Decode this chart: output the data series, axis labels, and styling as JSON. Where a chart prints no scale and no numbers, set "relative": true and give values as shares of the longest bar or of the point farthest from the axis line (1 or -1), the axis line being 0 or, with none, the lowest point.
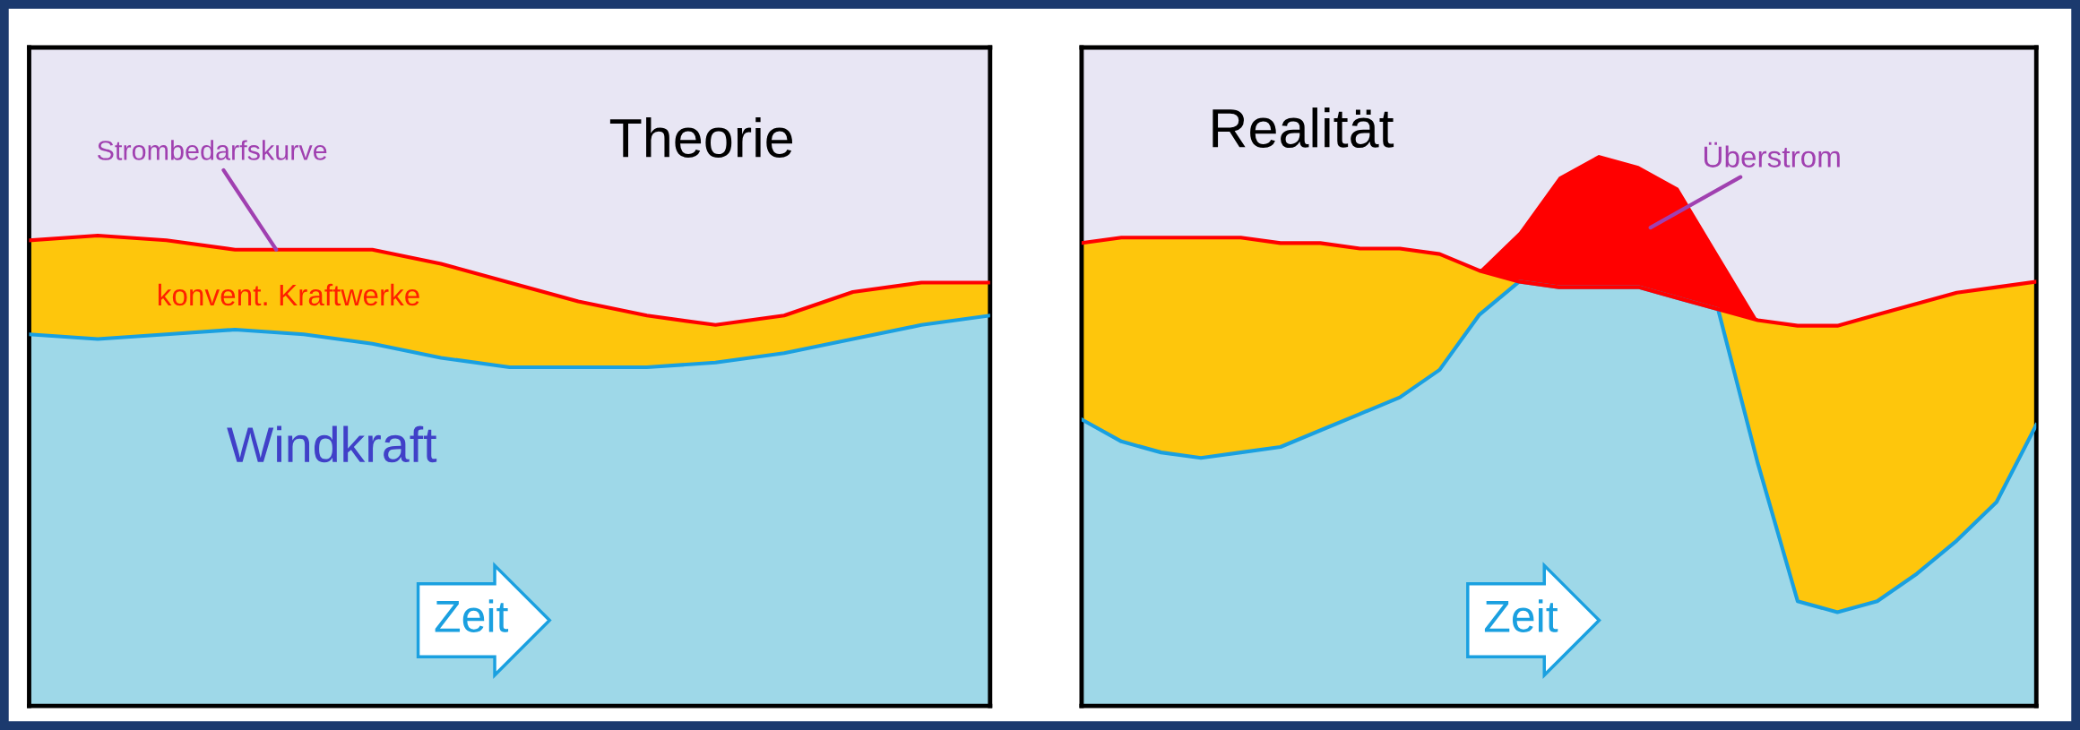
{
  "chart_data": [
    {
      "type": "area",
      "title": "Theorie",
      "xlabel": "Zeit",
      "annotations": [
        "Strombedarfskurve"
      ],
      "relative": true,
      "stacked": true,
      "legend": false,
      "grid": false,
      "categories": [
        null,
        null,
        null,
        null,
        null,
        null,
        null,
        null,
        null,
        null,
        null,
        null,
        null,
        null,
        null
      ],
      "series": [
        {
          "name": "Windkraft",
          "color": "#9ed8e8",
          "values": [
            0.79,
            0.78,
            0.79,
            0.8,
            0.79,
            0.77,
            0.74,
            0.72,
            0.72,
            0.72,
            0.73,
            0.75,
            0.78,
            0.81,
            0.83
          ]
        },
        {
          "name": "konvent. Kraftwerke",
          "color": "#fec60c",
          "values": [
            0.2,
            0.22,
            0.2,
            0.17,
            0.18,
            0.2,
            0.2,
            0.18,
            0.14,
            0.11,
            0.08,
            0.08,
            0.1,
            0.09,
            0.07
          ]
        }
      ]
    },
    {
      "type": "area",
      "title": "Realität",
      "xlabel": "Zeit",
      "relative": true,
      "stacked": true,
      "legend": false,
      "grid": false,
      "categories": [
        null,
        null,
        null,
        null,
        null,
        null,
        null,
        null,
        null,
        null,
        null,
        null,
        null,
        null,
        null,
        null,
        null,
        null,
        null,
        null,
        null,
        null,
        null,
        null,
        null
      ],
      "series": [
        {
          "color": "#9ed8e8",
          "values": [
            0.52,
            0.48,
            0.46,
            0.45,
            0.46,
            0.47,
            0.5,
            0.53,
            0.56,
            0.61,
            0.71,
            0.77,
            0.76,
            0.76,
            0.76,
            0.74,
            0.72,
            0.44,
            0.19,
            0.17,
            0.19,
            0.24,
            0.3,
            0.37,
            0.51
          ]
        },
        {
          "color": "#fec60c",
          "values": [
            0.32,
            0.37,
            0.39,
            0.4,
            0.39,
            0.37,
            0.34,
            0.3,
            0.27,
            0.21,
            0.08,
            0,
            0,
            0,
            0,
            0,
            0,
            0.26,
            0.5,
            0.52,
            0.52,
            0.49,
            0.45,
            0.39,
            0.26
          ]
        },
        {
          "name": "Überstrom",
          "color": "#ff0000",
          "values": [
            0,
            0,
            0,
            0,
            0,
            0,
            0,
            0,
            0,
            0,
            0,
            0.09,
            0.2,
            0.24,
            0.22,
            0.2,
            0.1,
            0,
            0,
            0,
            0,
            0,
            0,
            0,
            0
          ]
        }
      ]
    }
  ]
}
